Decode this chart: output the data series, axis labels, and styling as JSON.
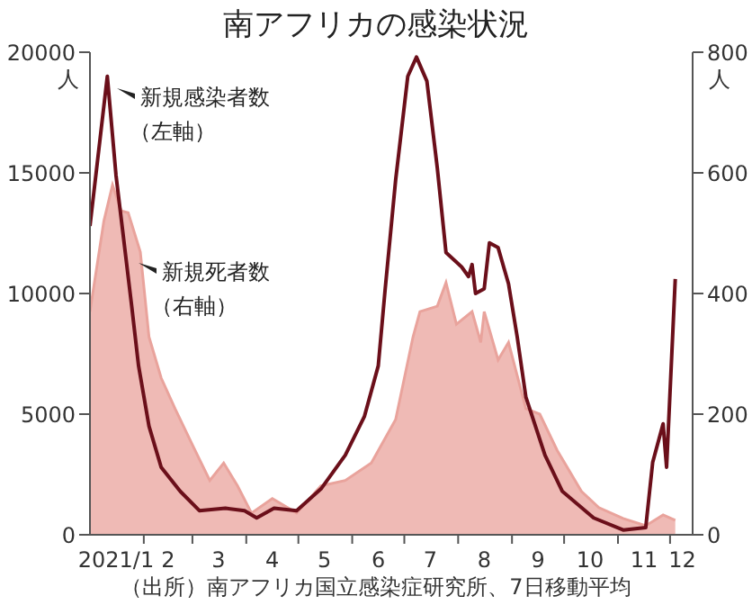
{
  "chart_data": {
    "type": "line",
    "title": "南アフリカの感染状況",
    "ylabel": "人",
    "y2label": "人",
    "annotations": [
      "（出所）南アフリカ国立感染症研究所、7日移動平均"
    ],
    "xlim": [
      "2021-01-01",
      "2021-12-14"
    ],
    "xticks": [
      {
        "value": "2021-01-16",
        "label": "2021/1"
      },
      {
        "value": "2021-02-01",
        "label": null
      },
      {
        "value": "2021-02-15",
        "label": "2"
      },
      {
        "value": "2021-03-01",
        "label": null
      },
      {
        "value": "2021-03-16",
        "label": "3"
      },
      {
        "value": "2021-04-01",
        "label": null
      },
      {
        "value": "2021-04-16",
        "label": "4"
      },
      {
        "value": "2021-05-01",
        "label": null
      },
      {
        "value": "2021-05-16",
        "label": "5"
      },
      {
        "value": "2021-06-01",
        "label": null
      },
      {
        "value": "2021-06-16",
        "label": "6"
      },
      {
        "value": "2021-07-01",
        "label": null
      },
      {
        "value": "2021-07-16",
        "label": "7"
      },
      {
        "value": "2021-08-01",
        "label": null
      },
      {
        "value": "2021-08-16",
        "label": "8"
      },
      {
        "value": "2021-09-01",
        "label": null
      },
      {
        "value": "2021-09-16",
        "label": "9"
      },
      {
        "value": "2021-10-01",
        "label": null
      },
      {
        "value": "2021-10-16",
        "label": "10"
      },
      {
        "value": "2021-11-01",
        "label": null
      },
      {
        "value": "2021-11-16",
        "label": "11"
      },
      {
        "value": "2021-12-01",
        "label": null
      },
      {
        "value": "2021-12-08",
        "label": "12"
      }
    ],
    "ylim": [
      0,
      20000
    ],
    "yticks": [
      0,
      5000,
      10000,
      15000,
      20000
    ],
    "y2lim": [
      0,
      800
    ],
    "y2ticks": [
      0,
      200,
      400,
      600,
      800
    ],
    "grid": false,
    "legend": false,
    "series": [
      {
        "name": "新規死者数（右軸）",
        "type": "area",
        "axis": "y2",
        "color": "#e9a39c",
        "x": [
          "2021-01-01",
          "2021-01-09",
          "2021-01-14",
          "2021-01-19",
          "2021-01-23",
          "2021-01-30",
          "2021-02-04",
          "2021-02-11",
          "2021-02-19",
          "2021-03-01",
          "2021-03-11",
          "2021-03-19",
          "2021-03-27",
          "2021-04-04",
          "2021-04-16",
          "2021-04-30",
          "2021-05-14",
          "2021-05-28",
          "2021-06-12",
          "2021-06-26",
          "2021-07-06",
          "2021-07-10",
          "2021-07-20",
          "2021-07-25",
          "2021-07-31",
          "2021-08-09",
          "2021-08-14",
          "2021-08-16",
          "2021-08-24",
          "2021-08-30",
          "2021-09-09",
          "2021-09-17",
          "2021-09-27",
          "2021-10-11",
          "2021-10-21",
          "2021-11-04",
          "2021-11-17",
          "2021-11-27",
          "2021-12-04"
        ],
        "values": [
          370,
          520,
          580,
          537,
          534,
          469,
          328,
          260,
          209,
          149,
          90,
          119,
          81,
          36,
          60,
          36,
          81,
          90,
          119,
          191,
          328,
          370,
          379,
          418,
          349,
          370,
          319,
          370,
          290,
          319,
          209,
          200,
          140,
          72,
          45,
          27,
          15,
          33,
          24
        ]
      },
      {
        "name": "新規感染者数（左軸）",
        "axis": "y",
        "color": "#6b0f1a",
        "x": [
          "2021-01-01",
          "2021-01-11",
          "2021-01-16",
          "2021-01-25",
          "2021-01-29",
          "2021-02-04",
          "2021-02-11",
          "2021-02-22",
          "2021-03-05",
          "2021-03-20",
          "2021-03-31",
          "2021-04-07",
          "2021-04-17",
          "2021-04-30",
          "2021-05-14",
          "2021-05-28",
          "2021-06-08",
          "2021-06-16",
          "2021-06-20",
          "2021-06-26",
          "2021-07-03",
          "2021-07-08",
          "2021-07-14",
          "2021-07-20",
          "2021-07-25",
          "2021-08-03",
          "2021-08-07",
          "2021-08-09",
          "2021-08-11",
          "2021-08-16",
          "2021-08-19",
          "2021-08-24",
          "2021-08-30",
          "2021-09-04",
          "2021-09-09",
          "2021-09-20",
          "2021-09-30",
          "2021-10-18",
          "2021-11-04",
          "2021-11-17",
          "2021-11-21",
          "2021-11-27",
          "2021-11-29",
          "2021-12-04"
        ],
        "values": [
          12800,
          19000,
          14900,
          9500,
          7000,
          4500,
          2800,
          1800,
          1000,
          1100,
          1000,
          700,
          1100,
          1000,
          1900,
          3300,
          4900,
          7000,
          10200,
          14700,
          19000,
          19800,
          18800,
          15200,
          11700,
          11100,
          10700,
          11200,
          10000,
          10200,
          12100,
          11900,
          10400,
          8200,
          5700,
          3300,
          1800,
          700,
          200,
          300,
          3000,
          4600,
          2800,
          10600
        ]
      }
    ]
  }
}
